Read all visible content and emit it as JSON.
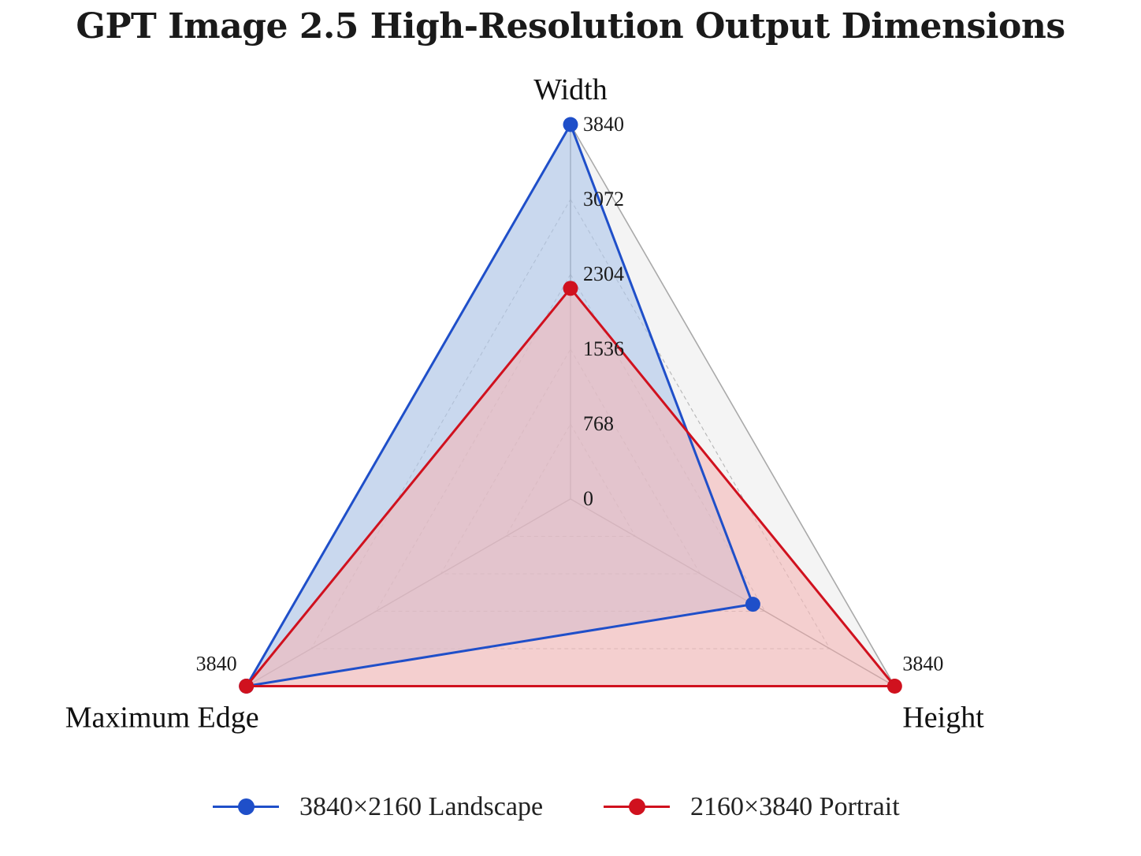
{
  "chart_data": {
    "type": "radar",
    "title": "GPT Image 2.5 High-Resolution Output Dimensions",
    "axes": [
      "Width",
      "Height",
      "Maximum Edge"
    ],
    "rlim": [
      0,
      3840
    ],
    "radial_ticks": [
      0,
      768,
      1536,
      2304,
      3072,
      3840
    ],
    "radial_tick_labels": [
      "0",
      "768",
      "1536",
      "2304",
      "3072",
      "3840"
    ],
    "axis_end_labels": [
      "3840",
      "3840",
      "3840"
    ],
    "grid": true,
    "legend_position": "bottom",
    "series": [
      {
        "name": "3840×2160 Landscape",
        "values": [
          3840,
          2160,
          3840
        ],
        "color": "#1f4fc9",
        "fill": "#aec6ea"
      },
      {
        "name": "2160×3840 Portrait",
        "values": [
          2160,
          3840,
          3840
        ],
        "color": "#d0111e",
        "fill": "#f4b8b8"
      }
    ]
  }
}
